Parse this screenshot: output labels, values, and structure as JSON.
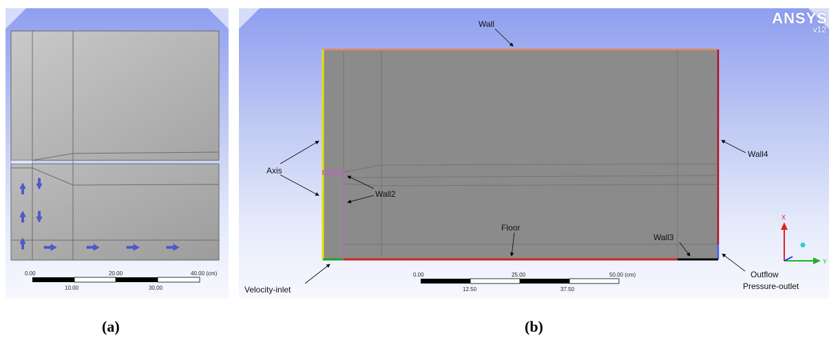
{
  "panel_a": {
    "caption": "(a)",
    "scale": {
      "top_labels": [
        "0.00",
        "20.00",
        "40.00 (cm)"
      ],
      "bottom_labels": [
        "10.00",
        "30.00"
      ]
    },
    "flow_arrows": [
      "up-arrow-icon",
      "down-arrow-icon",
      "right-arrow-icon"
    ]
  },
  "panel_b": {
    "caption": "(b)",
    "brand": {
      "name": "ANSYS",
      "version": "v12"
    },
    "labels": {
      "wall": "Wall",
      "axis": "Axis",
      "wall2": "Wall2",
      "wall3": "Wall3",
      "wall4": "Wall4",
      "floor": "Floor",
      "velocity_inlet": "Velocity-inlet",
      "outflow": "Outflow",
      "pressure_outlet": "Pressure-outlet"
    },
    "scale": {
      "top_labels": [
        "0.00",
        "25.00",
        "50.00 (cm)"
      ],
      "bottom_labels": [
        "12.50",
        "37.50"
      ]
    },
    "triad": {
      "x_label": "X",
      "y_label": "Y"
    }
  },
  "colors": {
    "geometry_fill": "#8a8a8a",
    "wall_top": "#e08a5a",
    "axis": "#e8e000",
    "floor": "#d02020",
    "wall4": "#b01020",
    "wall2": "#c060c0",
    "velocity_inlet": "#20a020",
    "wall3": "#000000",
    "outflow": "#4060ff",
    "flow_arrow": "#4a5cd8"
  }
}
